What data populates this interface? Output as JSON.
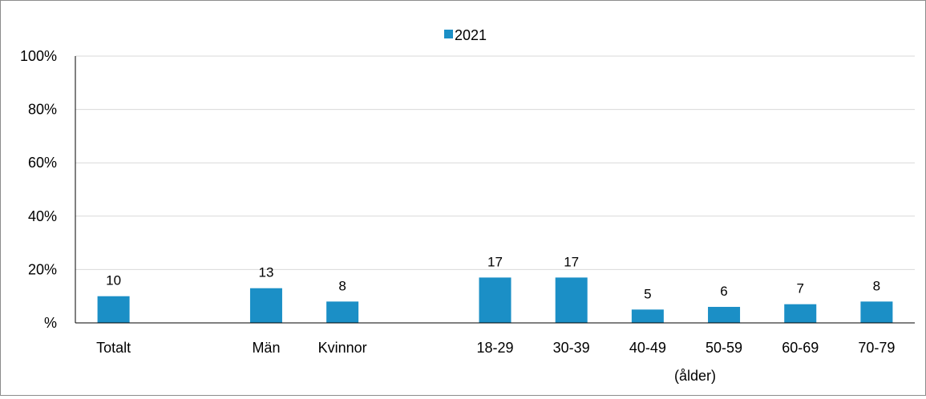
{
  "chart_data": {
    "type": "bar",
    "categories": [
      "Totalt",
      "",
      "Män",
      "Kvinnor",
      "",
      "18-29",
      "30-39",
      "40-49",
      "50-59",
      "60-69",
      "70-79"
    ],
    "series": [
      {
        "name": "2021",
        "values": [
          10,
          null,
          13,
          8,
          null,
          17,
          17,
          5,
          6,
          7,
          8
        ],
        "labels": [
          "10",
          "",
          "13",
          "8",
          "",
          "17",
          "17",
          "5",
          "6",
          "7",
          "8"
        ]
      }
    ],
    "yticks": [
      "%",
      "20%",
      "40%",
      "60%",
      "80%",
      "100%"
    ],
    "ylim": [
      0,
      100
    ],
    "xlabel": "",
    "ylabel": "",
    "annotation": "(ålder)",
    "legend": "top-center",
    "grid": true,
    "colors": {
      "bar": "#1b8fc6",
      "grid": "#d9d9d9",
      "axis": "#000000"
    }
  }
}
